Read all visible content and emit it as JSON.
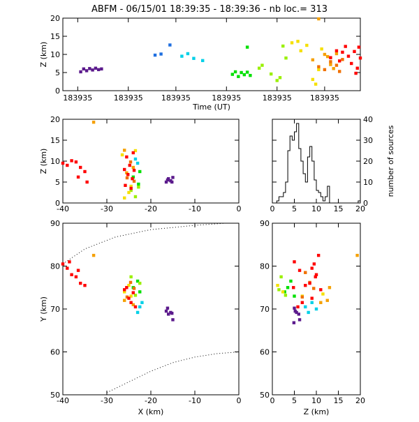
{
  "header": {
    "title": "ABFM - 06/15/01 18:39:35 - 18:39:36 - nb loc.=    313"
  },
  "colors": {
    "axis": "#000000",
    "palette": [
      "#5b1a8c",
      "#1f6fe0",
      "#00d0e8",
      "#00e000",
      "#9af000",
      "#f5e000",
      "#f5a000",
      "#f07000",
      "#ff0000"
    ]
  },
  "chart_data": [
    {
      "id": "time_height",
      "type": "scatter",
      "xlabel": "Time (UT)",
      "ylabel": "Z (km)",
      "xlim": [
        0,
        1
      ],
      "ylim": [
        0,
        20
      ],
      "x_ticklabels": [
        "183935",
        "183935",
        "183935",
        "183935",
        "183935",
        "183935"
      ],
      "y_ticks": [
        0,
        5,
        10,
        15,
        20
      ],
      "series": [
        {
          "color": "#5b1a8c",
          "points": [
            [
              0.06,
              5.2
            ],
            [
              0.07,
              6.0
            ],
            [
              0.08,
              5.5
            ],
            [
              0.09,
              6.1
            ],
            [
              0.1,
              5.7
            ],
            [
              0.11,
              6.2
            ],
            [
              0.12,
              5.8
            ],
            [
              0.13,
              6.0
            ]
          ]
        },
        {
          "color": "#1f6fe0",
          "points": [
            [
              0.31,
              9.8
            ],
            [
              0.33,
              10.1
            ],
            [
              0.36,
              12.6
            ]
          ]
        },
        {
          "color": "#00d0e8",
          "points": [
            [
              0.4,
              9.5
            ],
            [
              0.42,
              10.2
            ],
            [
              0.44,
              8.9
            ],
            [
              0.47,
              8.3
            ]
          ]
        },
        {
          "color": "#00e000",
          "points": [
            [
              0.57,
              4.5
            ],
            [
              0.58,
              5.2
            ],
            [
              0.59,
              3.9
            ],
            [
              0.6,
              5.0
            ],
            [
              0.61,
              4.4
            ],
            [
              0.62,
              5.1
            ],
            [
              0.63,
              4.2
            ],
            [
              0.62,
              12.0
            ]
          ]
        },
        {
          "color": "#9af000",
          "points": [
            [
              0.66,
              6.2
            ],
            [
              0.67,
              7.0
            ],
            [
              0.7,
              4.6
            ],
            [
              0.72,
              2.8
            ],
            [
              0.73,
              3.6
            ],
            [
              0.74,
              12.3
            ],
            [
              0.75,
              9.0
            ]
          ]
        },
        {
          "color": "#f5e000",
          "points": [
            [
              0.77,
              13.2
            ],
            [
              0.79,
              13.6
            ],
            [
              0.8,
              11.0
            ],
            [
              0.82,
              12.5
            ],
            [
              0.84,
              3.1
            ],
            [
              0.85,
              1.8
            ],
            [
              0.86,
              5.8
            ],
            [
              0.87,
              11.5
            ]
          ]
        },
        {
          "color": "#f5a000",
          "points": [
            [
              0.84,
              8.5
            ],
            [
              0.86,
              19.8
            ],
            [
              0.88,
              10.0
            ],
            [
              0.89,
              9.4
            ],
            [
              0.9,
              7.2
            ],
            [
              0.91,
              6.1
            ],
            [
              0.92,
              10.2
            ]
          ]
        },
        {
          "color": "#f07000",
          "points": [
            [
              0.86,
              6.6
            ],
            [
              0.88,
              5.8
            ],
            [
              0.9,
              8.0
            ],
            [
              0.92,
              7.0
            ],
            [
              0.93,
              5.3
            ],
            [
              0.94,
              8.6
            ]
          ]
        },
        {
          "color": "#ff0000",
          "points": [
            [
              0.9,
              9.1
            ],
            [
              0.92,
              11.0
            ],
            [
              0.93,
              8.2
            ],
            [
              0.94,
              10.6
            ],
            [
              0.95,
              12.2
            ],
            [
              0.96,
              9.5
            ],
            [
              0.97,
              7.5
            ],
            [
              0.98,
              10.8
            ],
            [
              0.99,
              6.2
            ],
            [
              1.0,
              9.0
            ],
            [
              0.985,
              4.8
            ],
            [
              0.995,
              12.0
            ]
          ]
        }
      ]
    },
    {
      "id": "xz_projection",
      "type": "scatter",
      "ylabel": "Z (km)",
      "xlim": [
        -40,
        0
      ],
      "ylim": [
        0,
        20
      ],
      "x_ticks": [
        -40,
        -30,
        -20,
        -10,
        0
      ],
      "y_ticks": [
        0,
        5,
        10,
        15,
        20
      ],
      "series": [
        {
          "color": "#5b1a8c",
          "points": [
            [
              -16.5,
              5.0
            ],
            [
              -16,
              5.8
            ],
            [
              -15.5,
              5.3
            ],
            [
              -15,
              6.1
            ],
            [
              -16.2,
              5.5
            ],
            [
              -15.2,
              5.0
            ]
          ]
        },
        {
          "color": "#00d0e8",
          "points": [
            [
              -23.5,
              10.5
            ],
            [
              -23,
              9.5
            ]
          ]
        },
        {
          "color": "#00e000",
          "points": [
            [
              -24,
              6.2
            ],
            [
              -22.5,
              7.5
            ],
            [
              -22.8,
              4.5
            ]
          ]
        },
        {
          "color": "#9af000",
          "points": [
            [
              -24.5,
              3.0
            ],
            [
              -23.5,
              1.5
            ],
            [
              -22.8,
              3.8
            ]
          ]
        },
        {
          "color": "#f5e000",
          "points": [
            [
              -25,
              2.5
            ],
            [
              -26,
              1.2
            ],
            [
              -24.5,
              4.0
            ],
            [
              -23.5,
              12.5
            ],
            [
              -26.5,
              11.5
            ]
          ]
        },
        {
          "color": "#f5a000",
          "points": [
            [
              -33,
              19.3
            ],
            [
              -26,
              12.6
            ],
            [
              -24,
              8.5
            ],
            [
              -25.5,
              7.2
            ]
          ]
        },
        {
          "color": "#f07000",
          "points": [
            [
              -24.6,
              9.8
            ],
            [
              -25.4,
              6.0
            ],
            [
              -23.8,
              5.2
            ]
          ]
        },
        {
          "color": "#ff0000",
          "points": [
            [
              -40,
              9.5
            ],
            [
              -39,
              9.0
            ],
            [
              -38,
              10.1
            ],
            [
              -37,
              9.8
            ],
            [
              -36,
              8.5
            ],
            [
              -35,
              7.5
            ],
            [
              -36.5,
              6.2
            ],
            [
              -34.5,
              5.0
            ],
            [
              -25.5,
              11
            ],
            [
              -24.8,
              9
            ],
            [
              -25.2,
              6.8
            ],
            [
              -24.2,
              5.8
            ],
            [
              -24.5,
              3.5
            ],
            [
              -25.8,
              4.2
            ],
            [
              -23.8,
              7.8
            ],
            [
              -26,
              8.0
            ],
            [
              -24,
              12
            ]
          ]
        }
      ]
    },
    {
      "id": "z_histogram",
      "type": "bar",
      "ylabel": "number of sources",
      "xlim": [
        0,
        20
      ],
      "ylim": [
        0,
        40
      ],
      "x_ticks": [
        0,
        5,
        10,
        15,
        20
      ],
      "y_ticks": [
        0,
        10,
        20,
        30,
        40
      ],
      "bin_width": 0.5,
      "values": [
        0,
        0,
        1,
        3,
        3,
        5,
        10,
        25,
        32,
        30,
        34,
        38,
        26,
        20,
        14,
        10,
        22,
        27,
        20,
        11,
        6,
        5,
        3,
        1,
        3,
        8,
        0,
        0,
        0,
        0,
        0,
        0,
        0,
        0,
        0,
        0,
        0,
        0,
        0,
        1
      ]
    },
    {
      "id": "xy_projection",
      "type": "scatter",
      "xlabel": "X (km)",
      "ylabel": "Y (km)",
      "xlim": [
        -40,
        0
      ],
      "ylim": [
        50,
        90
      ],
      "x_ticks": [
        -40,
        -30,
        -20,
        -10,
        0
      ],
      "y_ticks": [
        50,
        60,
        70,
        80,
        90
      ],
      "series": [
        {
          "color": "#5b1a8c",
          "points": [
            [
              -16.5,
              69.5
            ],
            [
              -16,
              68.8
            ],
            [
              -15.5,
              69.2
            ],
            [
              -15,
              67.5
            ],
            [
              -16.2,
              70.2
            ],
            [
              -15.2,
              69.0
            ]
          ]
        },
        {
          "color": "#00d0e8",
          "points": [
            [
              -22.5,
              70.5
            ],
            [
              -23,
              69.2
            ],
            [
              -22,
              71.5
            ]
          ]
        },
        {
          "color": "#00e000",
          "points": [
            [
              -24,
              75.0
            ],
            [
              -23,
              76.5
            ],
            [
              -22.5,
              74.0
            ]
          ]
        },
        {
          "color": "#9af000",
          "points": [
            [
              -24.5,
              77.5
            ],
            [
              -23.5,
              73.2
            ],
            [
              -22.5,
              76.0
            ]
          ]
        },
        {
          "color": "#f5e000",
          "points": [
            [
              -25,
              75.5
            ],
            [
              -26,
              74.0
            ],
            [
              -24.5,
              73.0
            ]
          ]
        },
        {
          "color": "#f5a000",
          "points": [
            [
              -33,
              82.5
            ],
            [
              -26,
              72.0
            ],
            [
              -24,
              71.0
            ]
          ]
        },
        {
          "color": "#f07000",
          "points": [
            [
              -24.6,
              76.2
            ],
            [
              -25.4,
              72.8
            ],
            [
              -23.8,
              74.8
            ]
          ]
        },
        {
          "color": "#ff0000",
          "points": [
            [
              -40,
              80.5
            ],
            [
              -39,
              79.5
            ],
            [
              -38,
              78.0
            ],
            [
              -37,
              77.5
            ],
            [
              -36,
              76.0
            ],
            [
              -35,
              75.5
            ],
            [
              -36.5,
              79.0
            ],
            [
              -38.5,
              81.0
            ],
            [
              -26,
              74.5
            ],
            [
              -25,
              72.5
            ],
            [
              -24.5,
              71.5
            ],
            [
              -23.5,
              70.5
            ],
            [
              -25.5,
              75.0
            ],
            [
              -24,
              73.8
            ]
          ]
        }
      ],
      "curves": [
        {
          "style": "dotted",
          "points": [
            [
              -40,
              80.5
            ],
            [
              -35,
              84
            ],
            [
              -28,
              86.8
            ],
            [
              -20,
              88.5
            ],
            [
              -10,
              89.5
            ],
            [
              -3,
              90
            ]
          ]
        },
        {
          "style": "dotted",
          "points": [
            [
              -30,
              50.5
            ],
            [
              -25,
              53
            ],
            [
              -20,
              55.5
            ],
            [
              -15,
              57.5
            ],
            [
              -10,
              58.8
            ],
            [
              -5,
              59.6
            ],
            [
              0,
              60
            ]
          ]
        }
      ]
    },
    {
      "id": "zy_projection",
      "type": "scatter",
      "xlabel": "Z (km)",
      "xlim": [
        0,
        20
      ],
      "ylim": [
        50,
        90
      ],
      "x_ticks": [
        0,
        5,
        10,
        15,
        20
      ],
      "y_ticks": [
        50,
        60,
        70,
        80,
        90
      ],
      "series": [
        {
          "color": "#5b1a8c",
          "points": [
            [
              5.2,
              69.5
            ],
            [
              6.0,
              68.8
            ],
            [
              5.5,
              69.2
            ],
            [
              6.2,
              67.5
            ],
            [
              5.0,
              70.2
            ],
            [
              4.9,
              66.8
            ]
          ]
        },
        {
          "color": "#00d0e8",
          "points": [
            [
              7.5,
              70.5
            ],
            [
              8.2,
              69.2
            ],
            [
              9.0,
              71.5
            ],
            [
              10.0,
              70.0
            ]
          ]
        },
        {
          "color": "#00e000",
          "points": [
            [
              3.5,
              75.0
            ],
            [
              4.2,
              76.5
            ],
            [
              2.8,
              74.0
            ],
            [
              5.0,
              73.0
            ]
          ]
        },
        {
          "color": "#9af000",
          "points": [
            [
              2.0,
              77.5
            ],
            [
              3.0,
              73.2
            ],
            [
              1.5,
              74.5
            ]
          ]
        },
        {
          "color": "#f5e000",
          "points": [
            [
              1.2,
              75.5
            ],
            [
              2.4,
              74.0
            ],
            [
              6.8,
              73.0
            ],
            [
              11.5,
              73.5
            ]
          ]
        },
        {
          "color": "#f5a000",
          "points": [
            [
              19.3,
              82.5
            ],
            [
              12.5,
              72.0
            ],
            [
              13.0,
              75.0
            ],
            [
              11.0,
              71.5
            ]
          ]
        },
        {
          "color": "#f07000",
          "points": [
            [
              8.5,
              76.2
            ],
            [
              6.8,
              72.8
            ],
            [
              9.4,
              74.8
            ],
            [
              7.5,
              78.5
            ]
          ]
        },
        {
          "color": "#ff0000",
          "points": [
            [
              9.5,
              80.5
            ],
            [
              9.0,
              79.5
            ],
            [
              10.0,
              78.0
            ],
            [
              9.8,
              77.5
            ],
            [
              8.5,
              76.0
            ],
            [
              7.5,
              75.5
            ],
            [
              6.2,
              79.0
            ],
            [
              5.0,
              81.0
            ],
            [
              11.0,
              74.5
            ],
            [
              9.0,
              72.5
            ],
            [
              6.8,
              71.5
            ],
            [
              5.8,
              70.5
            ],
            [
              4.8,
              75.0
            ],
            [
              10.5,
              82.5
            ]
          ]
        }
      ]
    }
  ]
}
